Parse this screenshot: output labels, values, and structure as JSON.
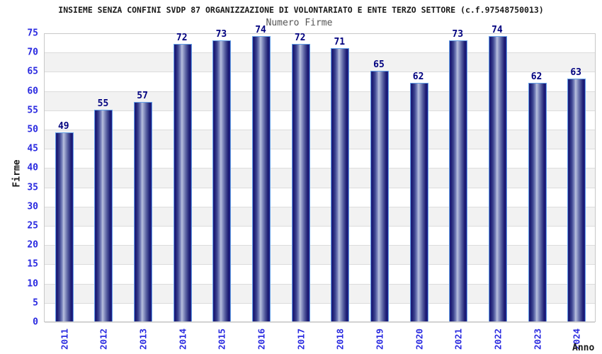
{
  "chart_data": {
    "type": "bar",
    "title": "INSIEME SENZA CONFINI SVDP 87 ORGANIZZAZIONE DI VOLONTARIATO E ENTE TERZO SETTORE (c.f.97548750013)",
    "subtitle": "Numero Firme",
    "xlabel": "Anno",
    "ylabel": "Firme",
    "categories": [
      "2011",
      "2012",
      "2013",
      "2014",
      "2015",
      "2016",
      "2017",
      "2018",
      "2019",
      "2020",
      "2021",
      "2022",
      "2023",
      "2024"
    ],
    "values": [
      49,
      55,
      57,
      72,
      73,
      74,
      72,
      71,
      65,
      62,
      73,
      74,
      62,
      63
    ],
    "ylim": [
      0,
      75
    ],
    "ytick_step": 5,
    "legend": "none",
    "grid": "horizontal gridlines every 5 units with alternating white/gray bands",
    "colors": {
      "title_text": "#1a1a1a",
      "subtitle_text": "#555555",
      "axis_tick_text": "#2a2ae0",
      "value_label_text": "#00007f",
      "bar_dark": "#191970",
      "bar_light": "#b9c0de",
      "bar_border": "#64a0e6",
      "band_alt": "#f2f2f2",
      "gridline": "#dcdcdc",
      "plot_border": "#c8c8c8",
      "background": "#ffffff"
    }
  }
}
